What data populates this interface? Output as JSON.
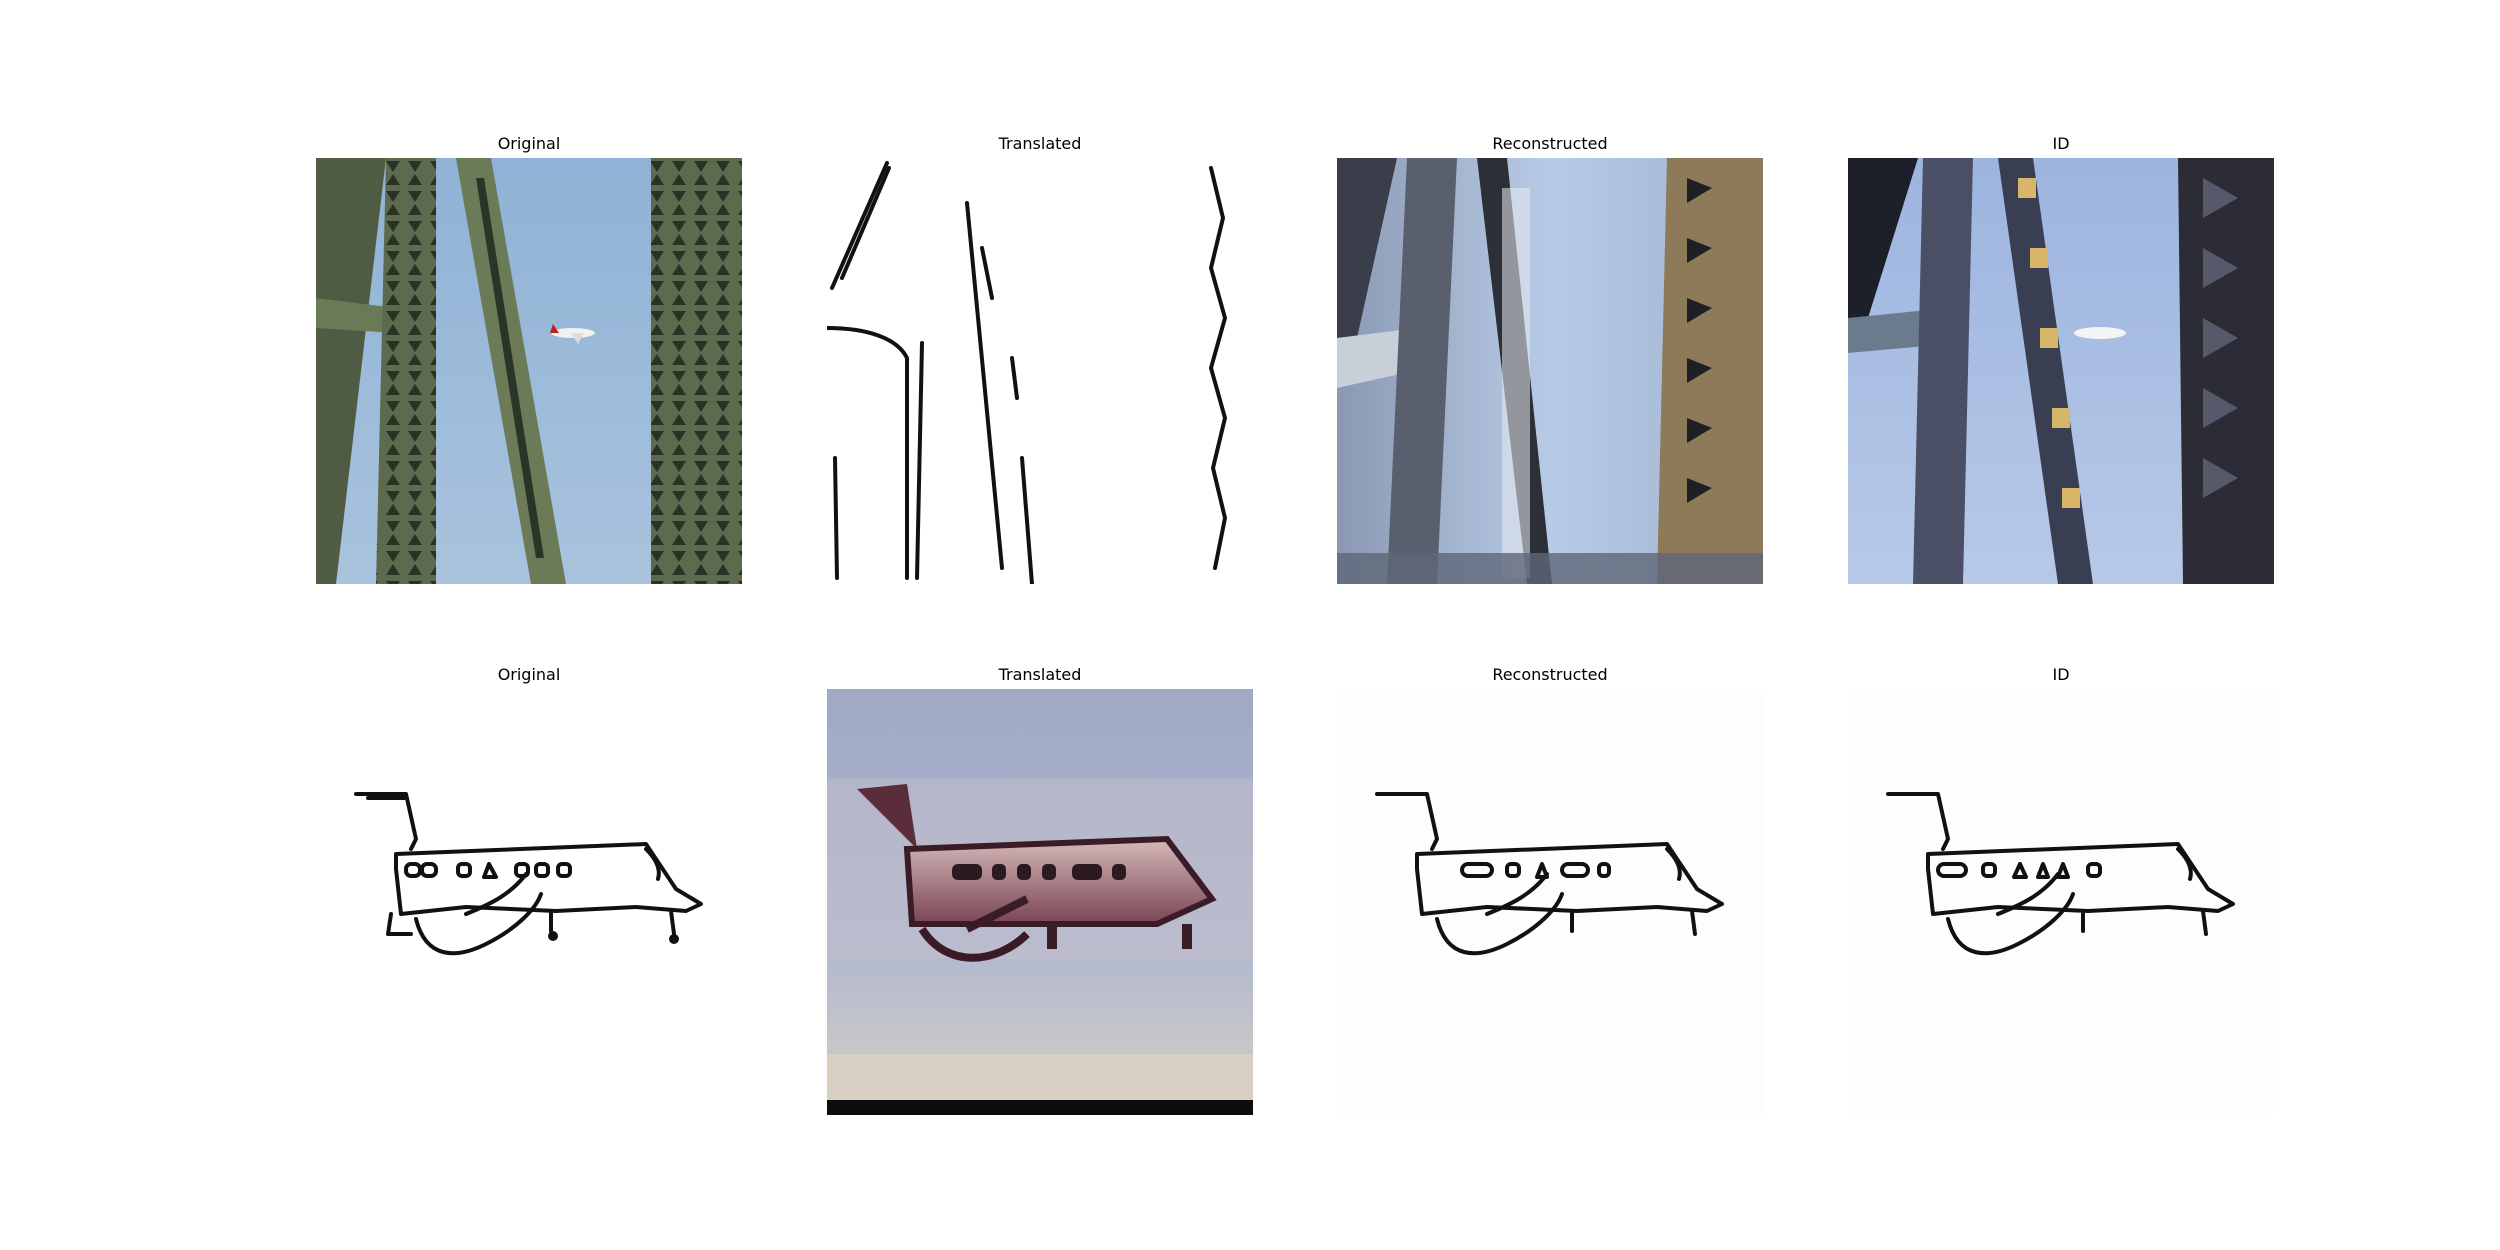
{
  "rows": [
    {
      "panels": [
        {
          "title": "Original"
        },
        {
          "title": "Translated"
        },
        {
          "title": "Reconstructed"
        },
        {
          "title": "ID"
        }
      ]
    },
    {
      "panels": [
        {
          "title": "Original"
        },
        {
          "title": "Translated"
        },
        {
          "title": "Reconstructed"
        },
        {
          "title": "ID"
        }
      ]
    }
  ],
  "colors": {
    "sky": "#9bb8d8",
    "girder": "#556447",
    "sketch_line": "#111111"
  }
}
